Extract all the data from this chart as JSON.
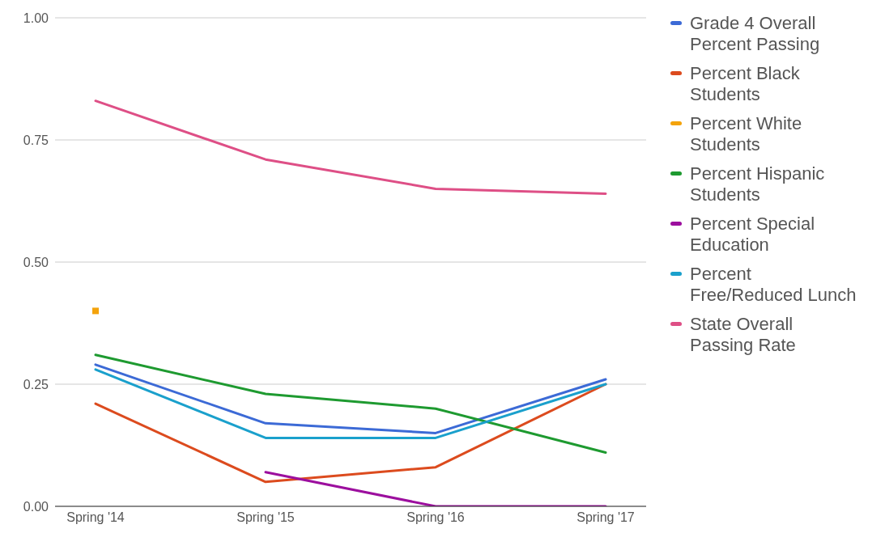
{
  "chart_data": {
    "type": "line",
    "categories": [
      "Spring '14",
      "Spring '15",
      "Spring '16",
      "Spring '17"
    ],
    "series": [
      {
        "name": "Grade 4 Overall Percent Passing",
        "color": "#3c6ad6",
        "values": [
          0.29,
          0.17,
          0.15,
          0.26
        ]
      },
      {
        "name": "Percent Black Students",
        "color": "#dc4b1e",
        "values": [
          0.21,
          0.05,
          0.08,
          0.25
        ]
      },
      {
        "name": "Percent White Students",
        "color": "#f4a30b",
        "values": [
          0.4,
          null,
          null,
          null
        ],
        "marker": "square"
      },
      {
        "name": "Percent Hispanic Students",
        "color": "#1e9a30",
        "values": [
          0.31,
          0.23,
          0.2,
          0.11
        ]
      },
      {
        "name": "Percent Special Education",
        "color": "#9c0f9e",
        "values": [
          null,
          0.07,
          0.0,
          0.0
        ]
      },
      {
        "name": "Percent Free/Reduced Lunch",
        "color": "#1aa0cc",
        "values": [
          0.28,
          0.14,
          0.14,
          0.25
        ]
      },
      {
        "name": "State Overall Passing Rate",
        "color": "#de4f86",
        "values": [
          0.83,
          0.71,
          0.65,
          0.64
        ]
      }
    ],
    "ylim": [
      0,
      1
    ],
    "yticks": [
      {
        "value": 0,
        "label": "0.00"
      },
      {
        "value": 0.25,
        "label": "0.25"
      },
      {
        "value": 0.5,
        "label": "0.50"
      },
      {
        "value": 0.75,
        "label": "0.75"
      },
      {
        "value": 1,
        "label": "1.00"
      }
    ],
    "grid": "y",
    "legend": "right",
    "marker": "none",
    "line_style": "solid"
  }
}
